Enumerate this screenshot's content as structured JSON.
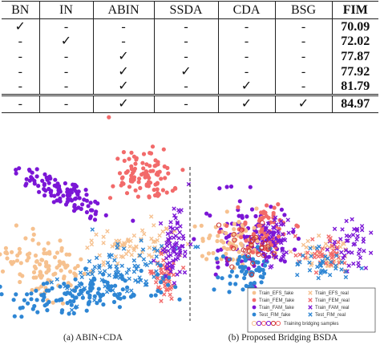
{
  "table": {
    "columns": [
      "BN",
      "IN",
      "ABIN",
      "SSDA",
      "CDA",
      "BSG",
      "FIM"
    ],
    "rows": [
      [
        "✓",
        "-",
        "-",
        "-",
        "-",
        "-",
        "70.09"
      ],
      [
        "-",
        "✓",
        "-",
        "-",
        "-",
        "-",
        "72.02"
      ],
      [
        "-",
        "-",
        "✓",
        "-",
        "-",
        "-",
        "77.87"
      ],
      [
        "-",
        "-",
        "✓",
        "✓",
        "-",
        "-",
        "77.92"
      ],
      [
        "-",
        "-",
        "✓",
        "-",
        "✓",
        "-",
        "81.79"
      ],
      [
        "-",
        "-",
        "✓",
        "-",
        "✓",
        "✓",
        "84.97"
      ]
    ]
  },
  "figure": {
    "caption_a": "(a) ABIN+CDA",
    "caption_b": "(b) Proposed Bridging BSDA",
    "legend": [
      {
        "label": "Train_EFS_fake",
        "marker": "dot",
        "color": "#f6c18f"
      },
      {
        "label": "Train_EFS_real",
        "marker": "cross",
        "color": "#f6c18f"
      },
      {
        "label": "Train_FEM_fake",
        "marker": "dot",
        "color": "#f26a6a"
      },
      {
        "label": "Train_FEM_real",
        "marker": "cross",
        "color": "#f26a6a"
      },
      {
        "label": "Train_FAM_fake",
        "marker": "dot",
        "color": "#7b16d6"
      },
      {
        "label": "Train_FAM_real",
        "marker": "cross",
        "color": "#7b16d6"
      },
      {
        "label": "Test_FIM_fake",
        "marker": "dot",
        "color": "#2e86d4"
      },
      {
        "label": "Test_FIM_real",
        "marker": "cross",
        "color": "#2e86d4"
      },
      {
        "label": "Training bridging samples",
        "marker": "ring",
        "color": "#cc3333"
      }
    ],
    "colors": {
      "efs": "#f6c18f",
      "fem": "#f26a6a",
      "fam": "#7b16d6",
      "fim": "#2e86d4"
    }
  }
}
